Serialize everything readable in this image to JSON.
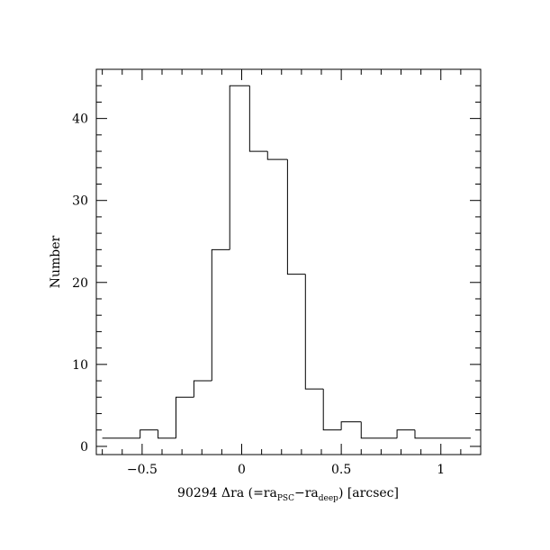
{
  "chart_data": {
    "type": "histogram",
    "xlabel_prefix": "90294 Δra (=ra",
    "xlabel_sub1": "PSC",
    "xlabel_mid": "−ra",
    "xlabel_sub2": "deep",
    "xlabel_suffix": ") [arcsec]",
    "ylabel": "Number",
    "xlim": [
      -0.73,
      1.2
    ],
    "ylim": [
      -1,
      46
    ],
    "x_major_ticks": [
      -0.5,
      0,
      0.5,
      1
    ],
    "x_tick_labels": [
      "−0.5",
      "0",
      "0.5",
      "1"
    ],
    "x_minor_step": 0.1,
    "y_major_ticks": [
      0,
      10,
      20,
      30,
      40
    ],
    "y_tick_labels": [
      "0",
      "10",
      "20",
      "30",
      "40"
    ],
    "y_minor_step": 2,
    "bin_edges": [
      -0.7,
      -0.51,
      -0.42,
      -0.33,
      -0.24,
      -0.15,
      -0.06,
      0.04,
      0.13,
      0.23,
      0.32,
      0.41,
      0.5,
      0.6,
      0.78,
      0.87,
      1.15
    ],
    "counts": [
      1,
      2,
      1,
      6,
      8,
      24,
      44,
      36,
      35,
      21,
      7,
      2,
      3,
      1,
      2,
      1
    ],
    "grid": false,
    "legend": "none"
  }
}
